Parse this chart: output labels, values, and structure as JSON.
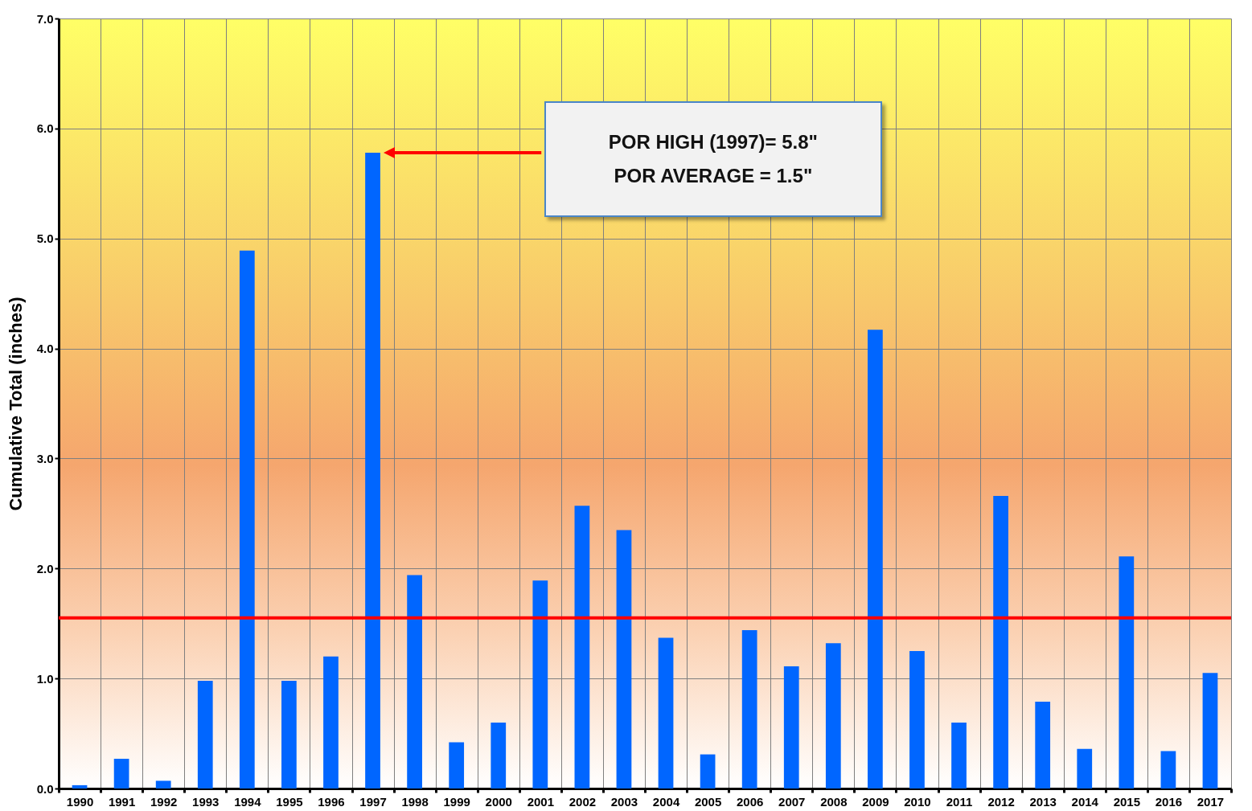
{
  "chart_data": {
    "type": "bar",
    "ylabel": "Cumulative Total (inches)",
    "categories": [
      "1990",
      "1991",
      "1992",
      "1993",
      "1994",
      "1995",
      "1996",
      "1997",
      "1998",
      "1999",
      "2000",
      "2001",
      "2002",
      "2003",
      "2004",
      "2005",
      "2006",
      "2007",
      "2008",
      "2009",
      "2010",
      "2011",
      "2012",
      "2013",
      "2014",
      "2015",
      "2016",
      "2017"
    ],
    "values": [
      0.03,
      0.27,
      0.07,
      0.98,
      4.89,
      0.98,
      1.2,
      5.78,
      1.94,
      0.42,
      0.6,
      1.89,
      2.57,
      2.35,
      1.37,
      0.31,
      1.44,
      1.11,
      1.32,
      4.17,
      1.25,
      0.6,
      2.66,
      0.79,
      0.36,
      2.11,
      0.34,
      1.05
    ],
    "color": "#0066ff",
    "ylim": [
      0,
      7
    ],
    "yticks": [
      {
        "value": 0,
        "label": "0.0"
      },
      {
        "value": 1,
        "label": "1.0"
      },
      {
        "value": 2,
        "label": "2.0"
      },
      {
        "value": 3,
        "label": "3.0"
      },
      {
        "value": 4,
        "label": "4.0"
      },
      {
        "value": 5,
        "label": "5.0"
      },
      {
        "value": 6,
        "label": "6.0"
      },
      {
        "value": 7,
        "label": "7.0"
      }
    ],
    "grid": true,
    "ref_lines": [
      {
        "axis": "y",
        "value": 1.55,
        "color": "#ff0000"
      }
    ],
    "annotations": [
      "POR HIGH (1997)= 5.8\"",
      "POR AVERAGE = 1.5\""
    ]
  }
}
